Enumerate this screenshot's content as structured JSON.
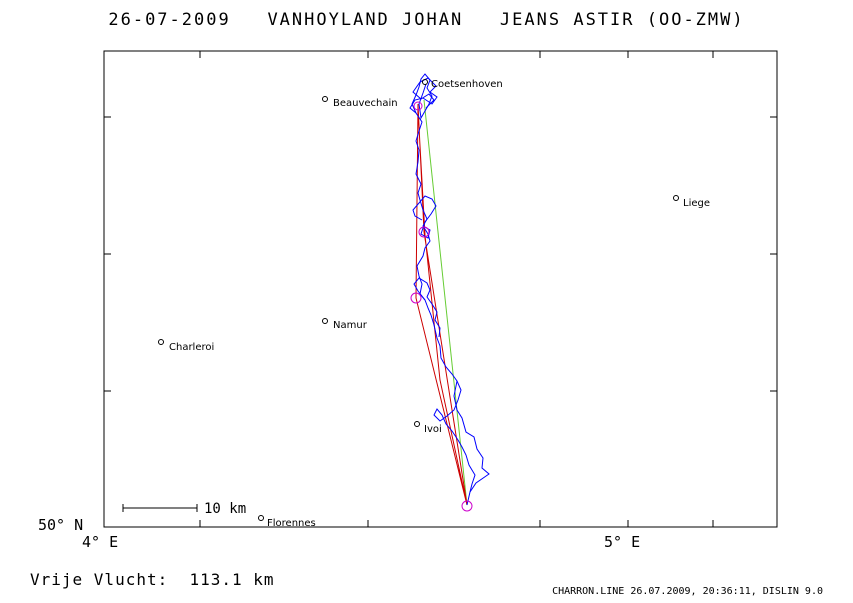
{
  "header": {
    "date": "26-07-2009",
    "pilot": "VANHOYLAND JOHAN",
    "glider": "JEANS ASTIR (OO-ZMW)"
  },
  "axes": {
    "lat_label": "50° N",
    "lon_label_left": "4° E",
    "lon_label_right": "5° E"
  },
  "scale_bar": {
    "label": "10 km"
  },
  "towns": [
    {
      "name": "Coetsenhoven"
    },
    {
      "name": "Beauvechain"
    },
    {
      "name": "Liege"
    },
    {
      "name": "Namur"
    },
    {
      "name": "Charleroi"
    },
    {
      "name": "Ivoi"
    },
    {
      "name": "Florennes"
    }
  ],
  "summary": {
    "distance_label": "Vrije Vlucht:",
    "distance_value": "113.1 km"
  },
  "footer": {
    "text": "CHARRON.LINE 26.07.2009, 20:36:11, DISLIN 9.0"
  },
  "colors": {
    "track": "#0000ff",
    "task_legs": "#cc0000",
    "direct_line": "#66cc33",
    "turnpoint_marker": "#cc00cc",
    "frame": "#000000"
  }
}
